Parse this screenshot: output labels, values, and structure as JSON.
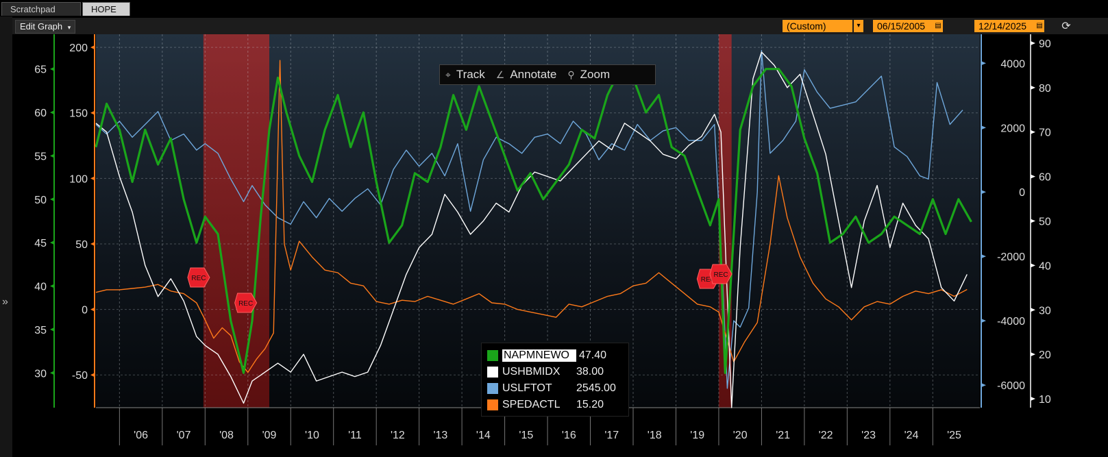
{
  "tabs": [
    {
      "label": "Scratchpad"
    },
    {
      "label": "HOPE"
    }
  ],
  "toolbar": {
    "edit_graph_label": "Edit Graph",
    "period": "(Custom)",
    "start_date": "06/15/2005",
    "end_date": "12/14/2025"
  },
  "chart_toolbar": {
    "track_label": "Track",
    "annotate_label": "Annotate",
    "zoom_label": "Zoom"
  },
  "legend": [
    {
      "name": "NAPMNEWO",
      "value": "47.40",
      "color": "#1aa51a"
    },
    {
      "name": "USHBMIDX",
      "value": "38.00",
      "color": "#ffffff"
    },
    {
      "name": "USLFTOT",
      "value": "2545.00",
      "color": "#6fa8dc"
    },
    {
      "name": "SPEDACTL",
      "value": "15.20",
      "color": "#ff7a1a"
    }
  ],
  "recession_label": "REC",
  "chart_data": {
    "type": "line",
    "x_ticks": [
      "'06",
      "'07",
      "'08",
      "'09",
      "'10",
      "'11",
      "'12",
      "'13",
      "'14",
      "'15",
      "'16",
      "'17",
      "'18",
      "'19",
      "'20",
      "'21",
      "'22",
      "'23",
      "'24",
      "'25"
    ],
    "axes": {
      "green": {
        "ticks": [
          30,
          35,
          40,
          45,
          50,
          55,
          60,
          65
        ],
        "range": [
          26,
          69
        ],
        "color": "#1aa51a"
      },
      "orange": {
        "ticks": [
          -50,
          0,
          50,
          100,
          150,
          200
        ],
        "range": [
          -75,
          210
        ],
        "color": "#ff7a1a"
      },
      "blue": {
        "ticks": [
          -6000,
          -4000,
          -2000,
          0,
          2000,
          4000
        ],
        "range": [
          -6700,
          4900
        ],
        "color": "#6fa8dc"
      },
      "white": {
        "ticks": [
          10,
          20,
          30,
          40,
          50,
          60,
          70,
          80,
          90
        ],
        "range": [
          8,
          92
        ],
        "color": "#ffffff"
      }
    },
    "recessions": [
      {
        "start": 2007.96,
        "end": 2009.5
      },
      {
        "start": 2020.0,
        "end": 2020.3
      }
    ],
    "series": [
      {
        "name": "NAPMNEWO",
        "axis": "green",
        "color": "#1aa51a",
        "x": [
          2005.45,
          2005.7,
          2006.0,
          2006.3,
          2006.6,
          2006.9,
          2007.2,
          2007.5,
          2007.8,
          2008.0,
          2008.3,
          2008.6,
          2008.9,
          2009.1,
          2009.3,
          2009.5,
          2009.7,
          2009.9,
          2010.2,
          2010.5,
          2010.8,
          2011.1,
          2011.4,
          2011.7,
          2012.0,
          2012.3,
          2012.6,
          2012.9,
          2013.2,
          2013.5,
          2013.8,
          2014.1,
          2014.4,
          2014.7,
          2015.0,
          2015.3,
          2015.6,
          2015.9,
          2016.2,
          2016.5,
          2016.8,
          2017.1,
          2017.4,
          2017.7,
          2018.0,
          2018.3,
          2018.6,
          2018.9,
          2019.2,
          2019.5,
          2019.8,
          2020.0,
          2020.15,
          2020.3,
          2020.5,
          2020.8,
          2021.1,
          2021.4,
          2021.7,
          2022.0,
          2022.3,
          2022.6,
          2022.9,
          2023.2,
          2023.5,
          2023.8,
          2024.1,
          2024.4,
          2024.7,
          2025.0,
          2025.3,
          2025.6,
          2025.9
        ],
        "y": [
          56,
          61,
          58,
          52,
          58,
          54,
          57,
          50,
          45,
          48,
          46,
          36,
          30,
          36,
          48,
          58,
          64,
          60,
          55,
          52,
          58,
          62,
          56,
          60,
          52,
          45,
          47,
          53,
          52,
          56,
          62,
          58,
          63,
          59,
          55,
          51,
          53,
          50,
          52,
          54,
          58,
          57,
          62,
          65,
          64,
          60,
          62,
          56,
          55,
          51,
          47,
          50,
          30,
          42,
          58,
          63,
          65,
          65,
          63,
          57,
          53,
          45,
          46,
          48,
          45,
          46,
          48,
          47,
          46,
          50,
          46,
          50,
          47.4
        ]
      },
      {
        "name": "USHBMIDX",
        "axis": "white",
        "color": "#ffffff",
        "x": [
          2005.45,
          2005.7,
          2006.0,
          2006.3,
          2006.6,
          2006.9,
          2007.2,
          2007.5,
          2007.8,
          2008.0,
          2008.3,
          2008.6,
          2008.9,
          2009.1,
          2009.4,
          2009.7,
          2010.0,
          2010.3,
          2010.6,
          2010.9,
          2011.2,
          2011.5,
          2011.8,
          2012.1,
          2012.4,
          2012.7,
          2013.0,
          2013.3,
          2013.6,
          2013.9,
          2014.2,
          2014.5,
          2014.8,
          2015.1,
          2015.4,
          2015.7,
          2016.0,
          2016.3,
          2016.6,
          2016.9,
          2017.2,
          2017.5,
          2017.8,
          2018.1,
          2018.4,
          2018.7,
          2019.0,
          2019.3,
          2019.6,
          2019.9,
          2020.05,
          2020.3,
          2020.5,
          2020.8,
          2021.0,
          2021.3,
          2021.6,
          2021.9,
          2022.2,
          2022.5,
          2022.8,
          2023.1,
          2023.4,
          2023.7,
          2024.0,
          2024.3,
          2024.6,
          2024.9,
          2025.2,
          2025.5,
          2025.8
        ],
        "y": [
          72,
          70,
          60,
          52,
          40,
          33,
          37,
          32,
          24,
          22,
          20,
          15,
          9,
          14,
          16,
          18,
          16,
          20,
          14,
          15,
          16,
          15,
          16,
          22,
          30,
          38,
          44,
          47,
          56,
          52,
          47,
          50,
          54,
          52,
          58,
          61,
          60,
          59,
          62,
          65,
          68,
          66,
          72,
          70,
          68,
          65,
          64,
          67,
          69,
          74,
          70,
          8,
          44,
          82,
          88,
          85,
          80,
          83,
          74,
          65,
          50,
          35,
          50,
          58,
          44,
          54,
          49,
          46,
          35,
          32,
          38
        ]
      },
      {
        "name": "USLFTOT",
        "axis": "blue",
        "color": "#6fa8dc",
        "x": [
          2005.45,
          2005.7,
          2006.0,
          2006.3,
          2006.6,
          2006.9,
          2007.2,
          2007.5,
          2007.8,
          2008.0,
          2008.3,
          2008.6,
          2008.9,
          2009.1,
          2009.4,
          2009.7,
          2010.0,
          2010.3,
          2010.6,
          2010.9,
          2011.2,
          2011.5,
          2011.8,
          2012.1,
          2012.4,
          2012.7,
          2013.0,
          2013.3,
          2013.6,
          2013.9,
          2014.2,
          2014.5,
          2014.8,
          2015.1,
          2015.4,
          2015.7,
          2016.0,
          2016.3,
          2016.6,
          2016.9,
          2017.2,
          2017.5,
          2017.8,
          2018.1,
          2018.4,
          2018.7,
          2019.0,
          2019.3,
          2019.6,
          2019.9,
          2020.1,
          2020.2,
          2020.35,
          2020.5,
          2020.7,
          2020.9,
          2021.0,
          2021.2,
          2021.5,
          2021.8,
          2022.0,
          2022.3,
          2022.6,
          2022.9,
          2023.2,
          2023.5,
          2023.8,
          2024.1,
          2024.4,
          2024.7,
          2024.9,
          2025.1,
          2025.4,
          2025.7
        ],
        "y": [
          2100,
          1800,
          2200,
          1700,
          2100,
          2500,
          1600,
          1800,
          1300,
          1500,
          1200,
          400,
          -300,
          200,
          -400,
          -800,
          -1000,
          -300,
          -800,
          -200,
          -600,
          -200,
          100,
          -400,
          700,
          1300,
          800,
          1200,
          500,
          1500,
          -600,
          1000,
          1700,
          1500,
          1200,
          1700,
          1800,
          1500,
          2200,
          1800,
          1000,
          1500,
          1300,
          2100,
          1600,
          1900,
          2000,
          1600,
          1600,
          2100,
          -3000,
          -6100,
          -4000,
          -4200,
          -3600,
          0,
          4400,
          1200,
          1600,
          2200,
          3800,
          3100,
          2600,
          2700,
          2800,
          3200,
          3600,
          1400,
          1100,
          500,
          400,
          3400,
          2100,
          2545
        ]
      },
      {
        "name": "SPEDACTL",
        "axis": "orange",
        "color": "#ff7a1a",
        "x": [
          2005.45,
          2005.7,
          2006.0,
          2006.3,
          2006.6,
          2006.9,
          2007.2,
          2007.5,
          2007.8,
          2008.0,
          2008.2,
          2008.4,
          2008.6,
          2008.8,
          2009.0,
          2009.2,
          2009.4,
          2009.6,
          2009.75,
          2009.85,
          2010.0,
          2010.2,
          2010.5,
          2010.8,
          2011.1,
          2011.4,
          2011.7,
          2012.0,
          2012.3,
          2012.6,
          2012.9,
          2013.2,
          2013.5,
          2013.8,
          2014.1,
          2014.4,
          2014.7,
          2015.0,
          2015.3,
          2015.6,
          2015.9,
          2016.2,
          2016.5,
          2016.8,
          2017.1,
          2017.4,
          2017.7,
          2018.0,
          2018.3,
          2018.6,
          2018.9,
          2019.2,
          2019.5,
          2019.8,
          2020.0,
          2020.15,
          2020.35,
          2020.6,
          2020.9,
          2021.2,
          2021.4,
          2021.6,
          2021.9,
          2022.2,
          2022.5,
          2022.8,
          2023.1,
          2023.4,
          2023.7,
          2024.0,
          2024.3,
          2024.6,
          2024.9,
          2025.2,
          2025.5,
          2025.8
        ],
        "y": [
          13,
          15,
          15,
          16,
          17,
          19,
          14,
          12,
          5,
          -8,
          -22,
          -14,
          -20,
          -40,
          -48,
          -38,
          -30,
          -18,
          190,
          50,
          30,
          52,
          40,
          30,
          28,
          20,
          18,
          6,
          4,
          7,
          6,
          10,
          7,
          4,
          8,
          12,
          5,
          4,
          0,
          -2,
          -4,
          -6,
          4,
          2,
          6,
          10,
          12,
          18,
          20,
          28,
          20,
          12,
          4,
          2,
          -2,
          -18,
          -40,
          -25,
          -10,
          50,
          102,
          70,
          40,
          20,
          8,
          2,
          -8,
          2,
          6,
          4,
          10,
          14,
          12,
          15,
          10,
          15.2
        ]
      }
    ]
  }
}
